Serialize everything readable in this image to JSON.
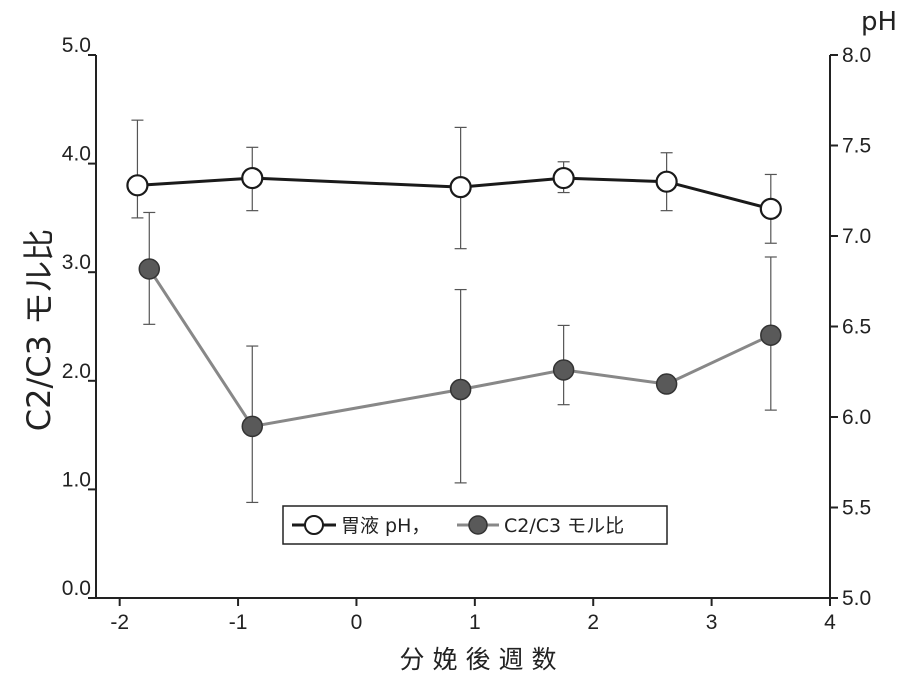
{
  "chart_data": {
    "type": "line",
    "xlabel": "分娩後週数",
    "ylabel_left": "C2/C3 モル比",
    "ylabel_right": "pH",
    "xlim": [
      -2.2,
      4
    ],
    "ylim_left": [
      0,
      5
    ],
    "ylim_right": [
      5,
      8
    ],
    "x_ticks": [
      "-2",
      "-1",
      "0",
      "1",
      "2",
      "3",
      "4"
    ],
    "y_left_ticks": [
      "0.0",
      "1.0",
      "2.0",
      "3.0",
      "4.0",
      "5.0"
    ],
    "y_right_ticks": [
      "5.0",
      "5.5",
      "6.0",
      "6.5",
      "7.0",
      "7.5",
      "8.0"
    ],
    "grid": false,
    "legend": {
      "position": "lower-center",
      "text": "胃液 pH，",
      "text2": "C2/C3 モル比"
    },
    "series": [
      {
        "name": "胃液 pH",
        "axis": "right",
        "color": "#1a1a1a",
        "marker_fill": "#ffffff",
        "x": [
          -1.85,
          -0.88,
          0.88,
          1.75,
          2.62,
          3.5
        ],
        "y": [
          7.28,
          7.32,
          7.27,
          7.32,
          7.3,
          7.15
        ],
        "err_low": [
          7.1,
          7.14,
          6.93,
          7.24,
          7.14,
          6.96
        ],
        "err_high": [
          7.64,
          7.49,
          7.6,
          7.41,
          7.46,
          7.34
        ]
      },
      {
        "name": "C2/C3 モル比",
        "axis": "left",
        "color": "#888888",
        "marker_fill": "#595959",
        "x": [
          -1.75,
          -0.88,
          0.88,
          1.75,
          2.62,
          3.5
        ],
        "y": [
          3.03,
          1.58,
          1.92,
          2.1,
          1.97,
          2.42
        ],
        "err_low": [
          2.52,
          0.88,
          1.06,
          1.78,
          null,
          1.73
        ],
        "err_high": [
          3.55,
          2.32,
          2.84,
          2.51,
          null,
          3.14
        ]
      }
    ]
  }
}
